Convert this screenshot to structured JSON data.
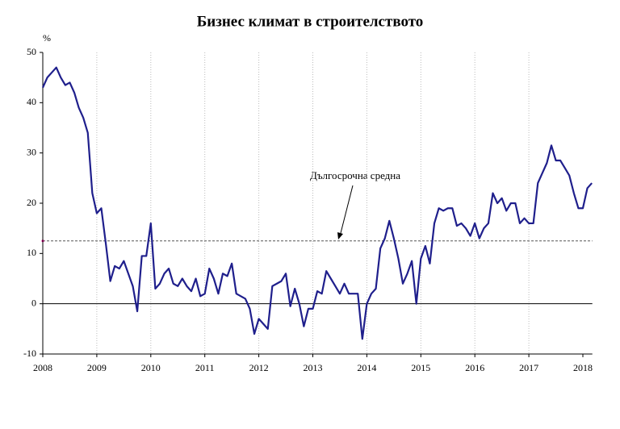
{
  "chart_data": {
    "type": "line",
    "title": "Бизнес климат в строителството",
    "y_unit_label": "%",
    "annotation": "Дългосрочна средна",
    "average": 12.5,
    "categories": [
      "2008",
      null,
      null,
      null,
      null,
      null,
      null,
      null,
      null,
      null,
      null,
      null,
      "2009",
      null,
      null,
      null,
      null,
      null,
      null,
      null,
      null,
      null,
      null,
      null,
      "2010",
      null,
      null,
      null,
      null,
      null,
      null,
      null,
      null,
      null,
      null,
      null,
      "2011",
      null,
      null,
      null,
      null,
      null,
      null,
      null,
      null,
      null,
      null,
      null,
      "2012",
      null,
      null,
      null,
      null,
      null,
      null,
      null,
      null,
      null,
      null,
      null,
      "2013",
      null,
      null,
      null,
      null,
      null,
      null,
      null,
      null,
      null,
      null,
      null,
      "2014",
      null,
      null,
      null,
      null,
      null,
      null,
      null,
      null,
      null,
      null,
      null,
      "2015",
      null,
      null,
      null,
      null,
      null,
      null,
      null,
      null,
      null,
      null,
      null,
      "2016",
      null,
      null,
      null,
      null,
      null,
      null,
      null,
      null,
      null,
      null,
      null,
      "2017",
      null,
      null,
      null,
      null,
      null,
      null,
      null,
      null,
      null,
      null,
      null,
      "2018",
      null,
      null
    ],
    "series": [
      {
        "color": "#1f1f8c",
        "values": [
          43,
          45,
          46,
          47,
          45,
          43.5,
          44,
          42,
          39,
          37,
          34,
          22,
          18,
          19,
          12,
          4.5,
          7.5,
          7,
          8.5,
          6,
          3.5,
          -1.5,
          9.5,
          9.5,
          16,
          3,
          4,
          6,
          7,
          4,
          3.5,
          5,
          3.5,
          2.5,
          5,
          1.5,
          2,
          7,
          5,
          2,
          6,
          5.5,
          8,
          2,
          1.5,
          1,
          -1,
          -6,
          -3,
          -4,
          -5,
          3.5,
          4,
          4.5,
          6,
          -0.5,
          3,
          0,
          -4.5,
          -1,
          -1,
          2.5,
          2,
          6.5,
          5,
          3.5,
          2,
          4,
          2,
          2,
          2,
          -7,
          0,
          2,
          3,
          11,
          13,
          16.5,
          13,
          9,
          4,
          6,
          8.5,
          0,
          9,
          11.5,
          8,
          16,
          19,
          18.5,
          19,
          19,
          15.5,
          16,
          15,
          13.5,
          16,
          13,
          15,
          16,
          22,
          20,
          21,
          18.5,
          20,
          20,
          16,
          17,
          16,
          16,
          24,
          26,
          28,
          31.5,
          28.5,
          28.5,
          27,
          25.5,
          22,
          19,
          19,
          23,
          24
        ]
      }
    ],
    "ylim": [
      -10,
      50
    ],
    "yticks": [
      -10,
      0,
      10,
      20,
      30,
      40,
      50
    ],
    "grid": true
  }
}
